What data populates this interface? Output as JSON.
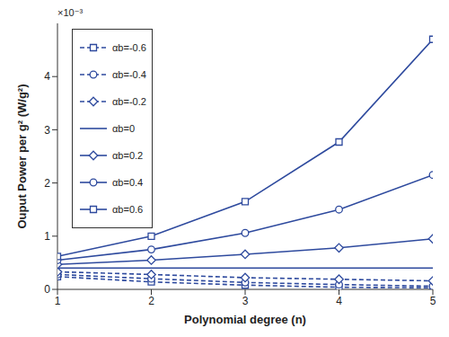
{
  "chart_data": {
    "type": "line",
    "x_label": "Polynomial degree (n)",
    "y_label": "Ouput Power per g² (W/g²)",
    "annotations": [
      "×10⁻³"
    ],
    "x": [
      1,
      2,
      3,
      4,
      5
    ],
    "xlim": [
      1,
      5
    ],
    "xticks": [
      1,
      2,
      3,
      4,
      5
    ],
    "ylim": [
      0,
      5
    ],
    "yticks": [
      0,
      1,
      2,
      3,
      4
    ],
    "grid": false,
    "legend": "upper left",
    "series": [
      {
        "name": "αb=-0.6",
        "color": "#2e4a9e",
        "marker": "square",
        "line_style": "dashed",
        "values": [
          0.24,
          0.14,
          0.08,
          0.04,
          0.03
        ]
      },
      {
        "name": "αb=-0.4",
        "color": "#2e4a9e",
        "marker": "circle",
        "line_style": "dashed",
        "values": [
          0.28,
          0.2,
          0.13,
          0.09,
          0.06
        ]
      },
      {
        "name": "αb=-0.2",
        "color": "#2e4a9e",
        "marker": "diamond",
        "line_style": "dashed",
        "values": [
          0.33,
          0.28,
          0.22,
          0.19,
          0.16
        ]
      },
      {
        "name": "αb=0",
        "color": "#2e4a9e",
        "marker": "none",
        "line_style": "solid",
        "values": [
          0.4,
          0.4,
          0.4,
          0.4,
          0.4
        ]
      },
      {
        "name": "αb=0.2",
        "color": "#2e4a9e",
        "marker": "diamond",
        "line_style": "solid",
        "values": [
          0.47,
          0.55,
          0.66,
          0.78,
          0.95
        ]
      },
      {
        "name": "αb=0.4",
        "color": "#2e4a9e",
        "marker": "circle",
        "line_style": "solid",
        "values": [
          0.55,
          0.75,
          1.06,
          1.5,
          2.15
        ]
      },
      {
        "name": "αb=0.6",
        "color": "#2e4a9e",
        "marker": "square",
        "line_style": "solid",
        "values": [
          0.62,
          1.0,
          1.65,
          2.77,
          4.7
        ]
      }
    ]
  }
}
